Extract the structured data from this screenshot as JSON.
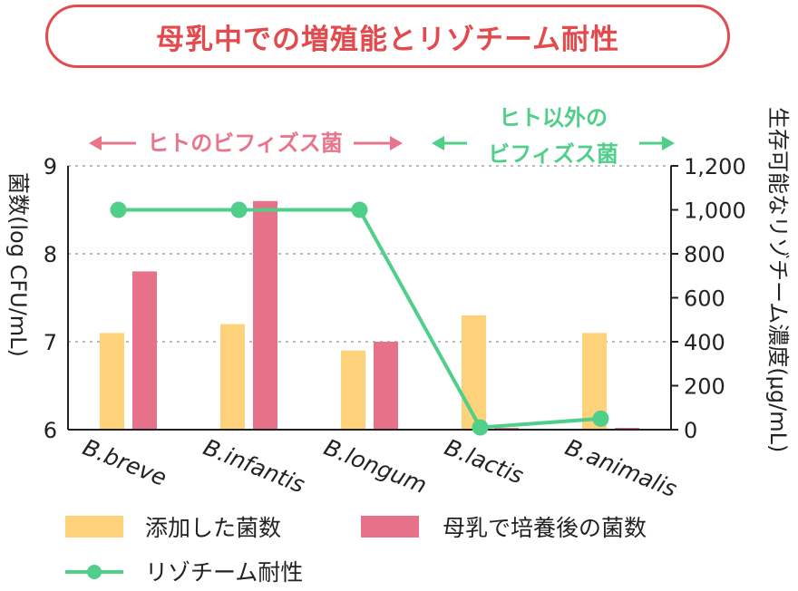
{
  "title": "母乳中での増殖能とリゾチーム耐性",
  "groups": {
    "human": "ヒトのビフィズス菌",
    "non_human_line1": "ヒト以外の",
    "non_human_line2": "ビフィズス菌"
  },
  "colors": {
    "title": "#e34a4e",
    "added": "#fdd27a",
    "cultured": "#e8718a",
    "line": "#4fcf8a",
    "grid": "#bbbbbb"
  },
  "chart_data": {
    "type": "bar",
    "categories": [
      "B.breve",
      "B.infantis",
      "B.longum",
      "B.lactis",
      "B.animalis"
    ],
    "series": [
      {
        "name": "添加した菌数",
        "values": [
          7.1,
          7.2,
          6.9,
          7.3,
          7.1
        ]
      },
      {
        "name": "母乳で培養後の菌数",
        "values": [
          7.8,
          8.6,
          7.0,
          6.0,
          6.0
        ]
      }
    ],
    "line_series": {
      "name": "リゾチーム耐性",
      "values": [
        1000,
        1000,
        1000,
        10,
        50
      ]
    },
    "ylabel": "菌数(log CFU/mL)",
    "y2label": "生存可能なリゾチーム濃度(μg/mL)",
    "ylim": [
      6,
      9
    ],
    "y2lim": [
      0,
      1200
    ],
    "yticks": [
      "6",
      "7",
      "8",
      "9"
    ],
    "y2ticks": [
      "0",
      "200",
      "400",
      "600",
      "800",
      "1,000",
      "1,200"
    ],
    "grid": true,
    "legend_position": "bottom"
  }
}
